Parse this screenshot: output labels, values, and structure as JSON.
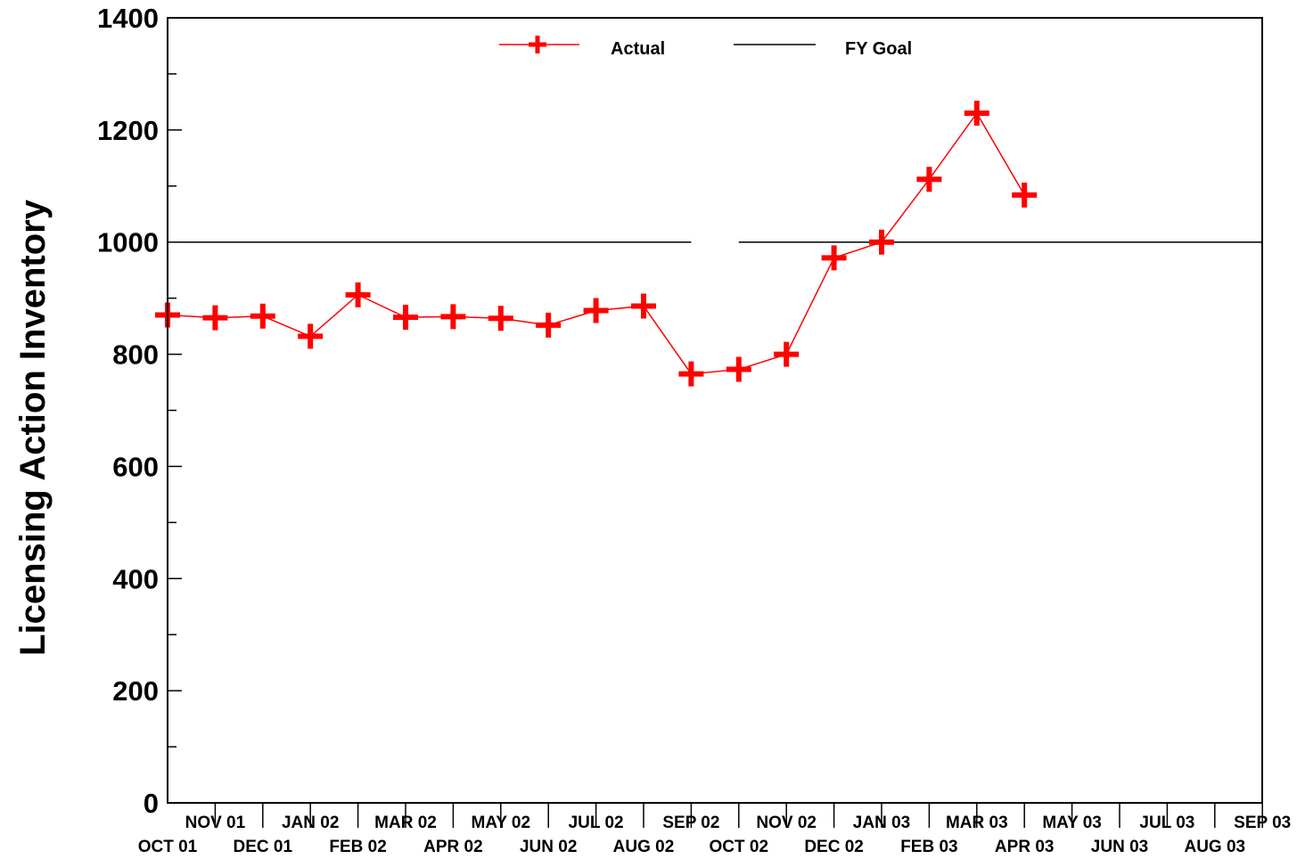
{
  "chart_data": {
    "type": "line",
    "ylabel": "Licensing Action Inventory",
    "ylim": [
      0,
      1400
    ],
    "yticks": [
      0,
      200,
      400,
      600,
      800,
      1000,
      1200,
      1400
    ],
    "categories": [
      "OCT 01",
      "NOV 01",
      "DEC 01",
      "JAN 02",
      "FEB 02",
      "MAR 02",
      "APR 02",
      "MAY 02",
      "JUN 02",
      "JUL 02",
      "AUG 02",
      "SEP 02",
      "OCT 02",
      "NOV 02",
      "DEC 02",
      "JAN 03",
      "FEB 03",
      "MAR 03",
      "APR 03",
      "MAY 03",
      "JUN 03",
      "JUL 03",
      "AUG 03",
      "SEP 03"
    ],
    "grid": false,
    "legend_position": "top-center",
    "series": [
      {
        "name": "Actual",
        "color": "#ff0000",
        "marker": "plus",
        "values": [
          870,
          865,
          868,
          832,
          906,
          866,
          867,
          864,
          852,
          878,
          886,
          765,
          773,
          800,
          972,
          1000,
          1112,
          1230,
          1084,
          null,
          null,
          null,
          null,
          null
        ]
      },
      {
        "name": "FY Goal",
        "color": "#000000",
        "segments": [
          {
            "from": "OCT 01",
            "to": "SEP 02",
            "value": 1000
          },
          {
            "from": "OCT 02",
            "to": "SEP 03",
            "value": 1000
          }
        ]
      }
    ]
  }
}
